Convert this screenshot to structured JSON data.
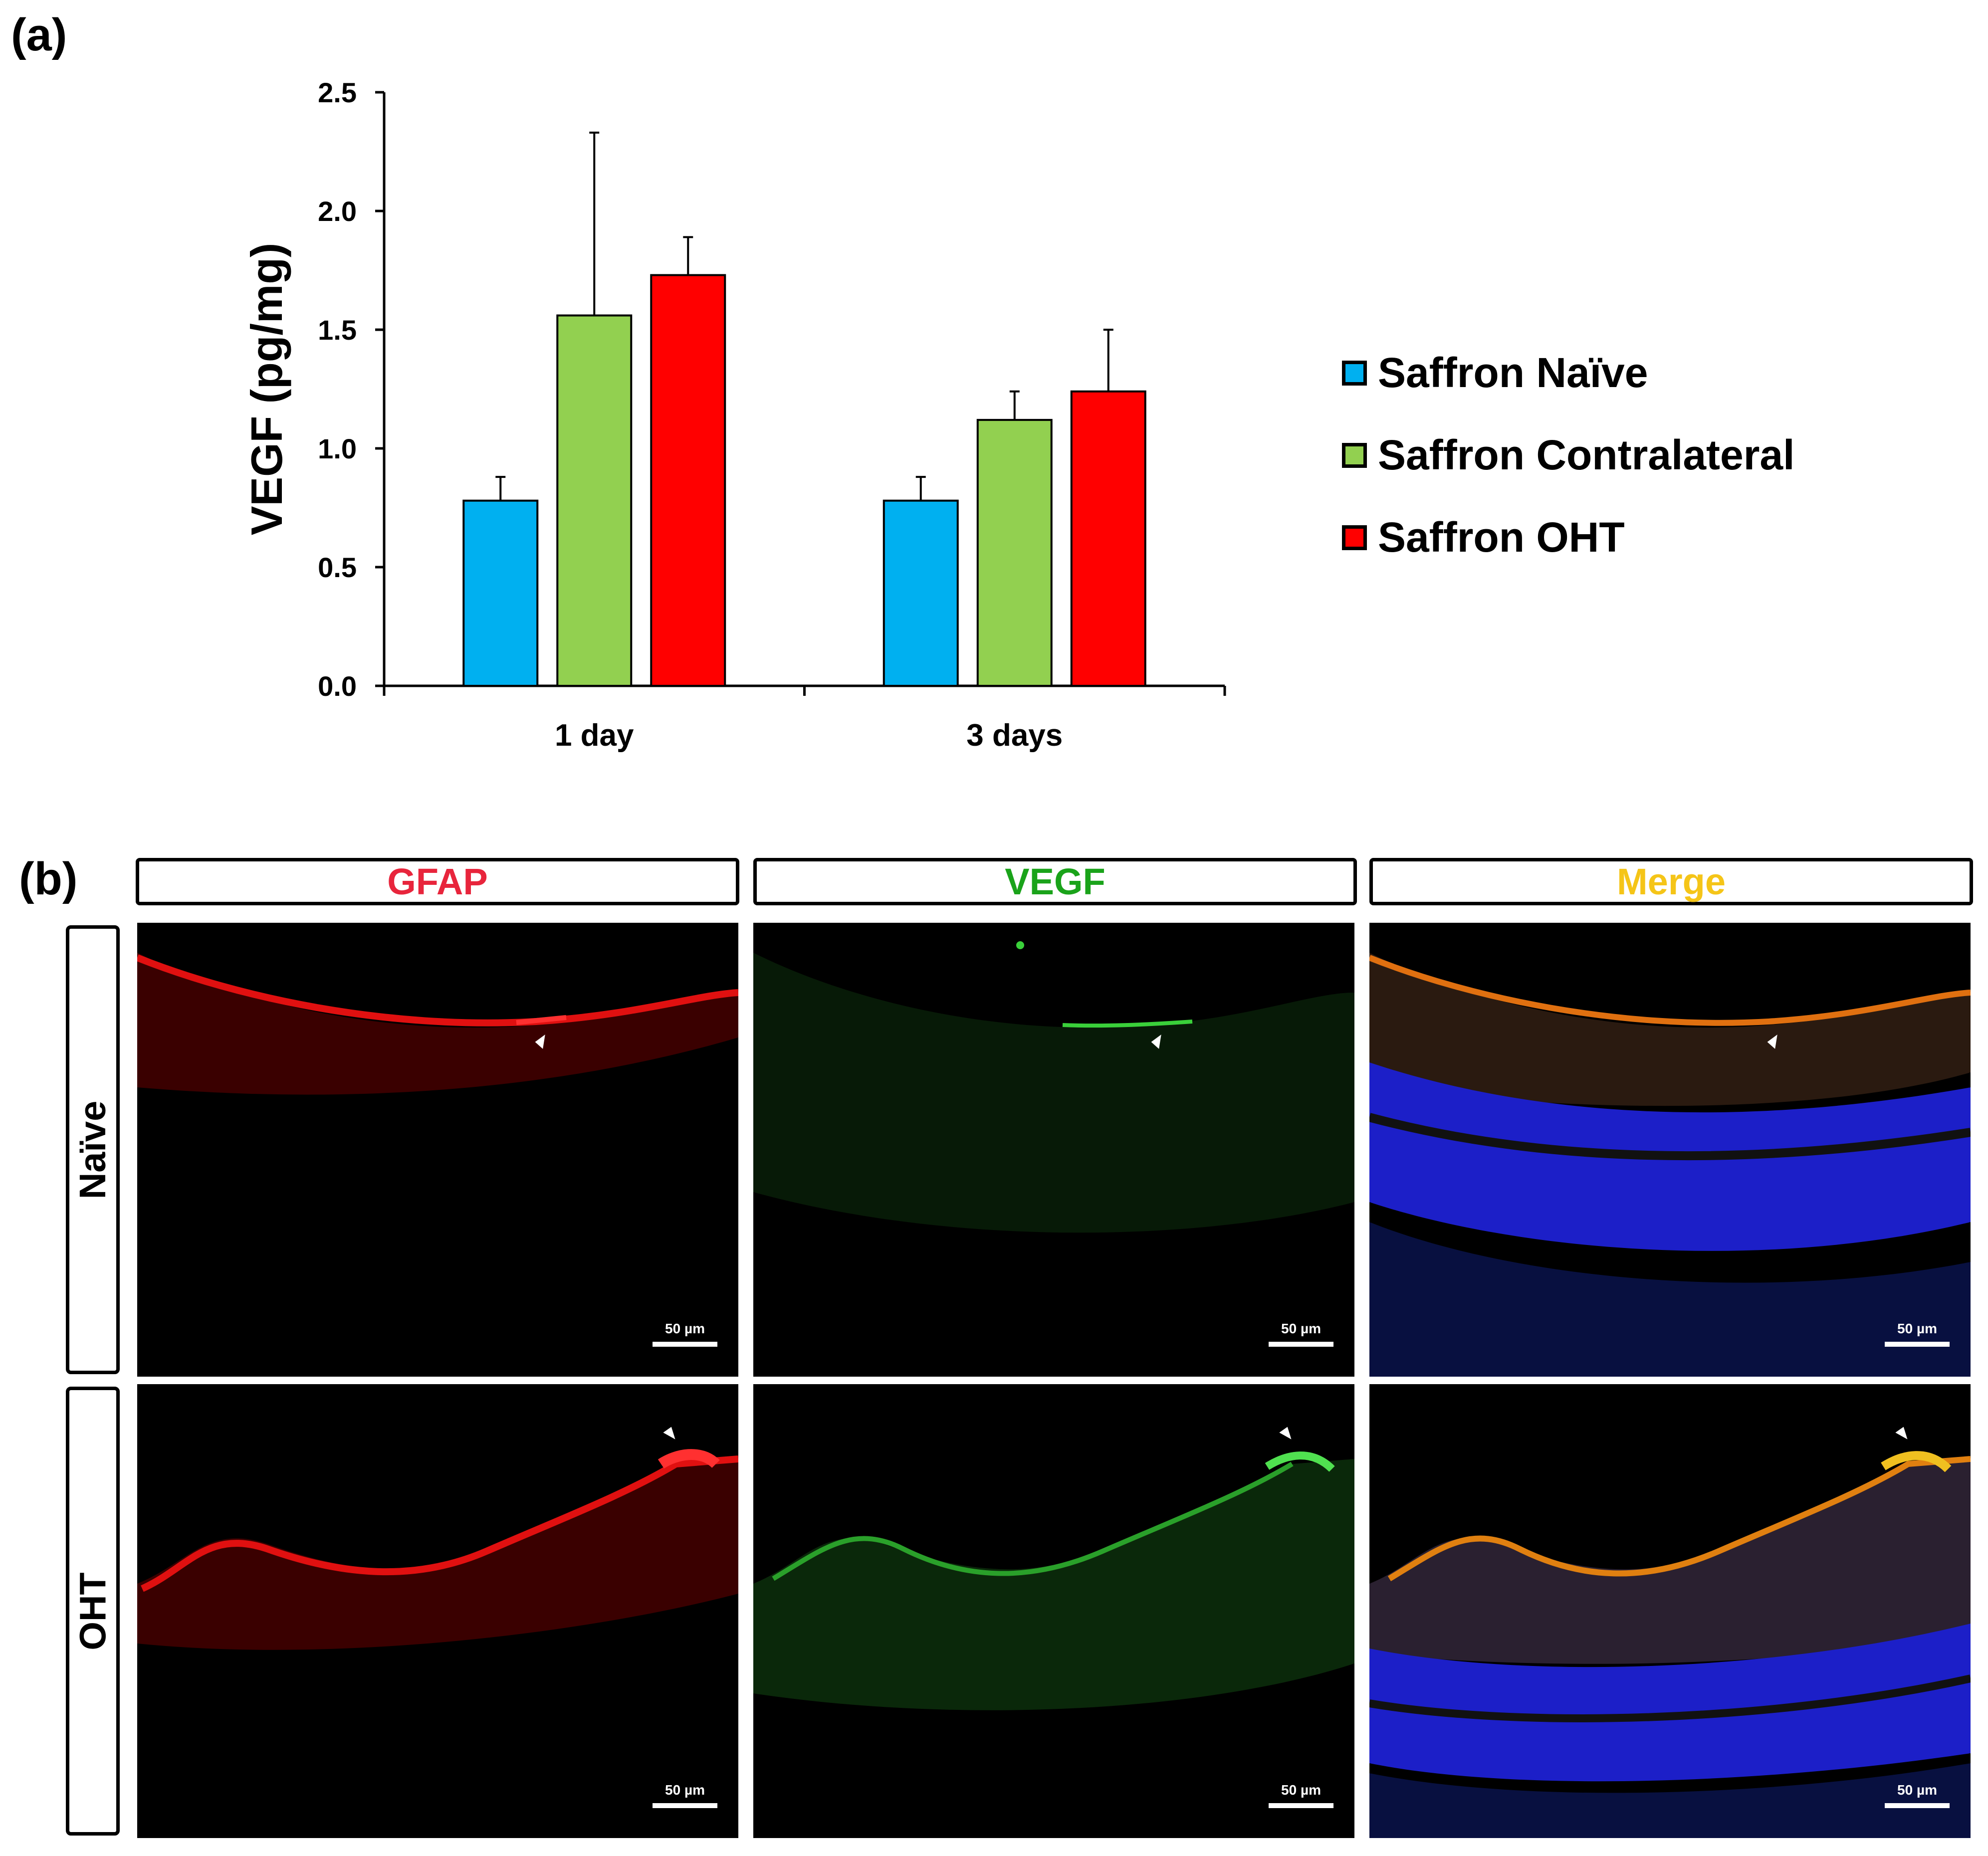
{
  "panel_labels": {
    "a": "(a)",
    "b": "(b)"
  },
  "chart_data": {
    "type": "bar",
    "title": "",
    "xlabel": "",
    "ylabel": "VEGF (pg/mg)",
    "ylim": [
      0,
      2.5
    ],
    "yticks": [
      "0.0",
      "0.5",
      "1.0",
      "1.5",
      "2.0",
      "2.5"
    ],
    "ytick_values": [
      0,
      0.5,
      1.0,
      1.5,
      2.0,
      2.5
    ],
    "categories": [
      "1 day",
      "3 days"
    ],
    "legend_position": "right",
    "series": [
      {
        "name": "Saffron Naïve",
        "color": "#00b0f0",
        "values": [
          0.78,
          0.78
        ],
        "errors": [
          0.1,
          0.1
        ]
      },
      {
        "name": "Saffron Contralateral",
        "color": "#92d050",
        "values": [
          1.56,
          1.12
        ],
        "errors": [
          0.77,
          0.12
        ]
      },
      {
        "name": "Saffron OHT",
        "color": "#ff0000",
        "values": [
          1.73,
          1.24
        ],
        "errors": [
          0.16,
          0.26
        ]
      }
    ]
  },
  "figure_b": {
    "columns": [
      {
        "label": "GFAP",
        "color": "#e8253c"
      },
      {
        "label": "VEGF",
        "color": "#1aa31a"
      },
      {
        "label": "Merge",
        "color": "#f5c518"
      }
    ],
    "rows": [
      "Naïve",
      "OHT"
    ],
    "scale_bar": "50 µm"
  }
}
